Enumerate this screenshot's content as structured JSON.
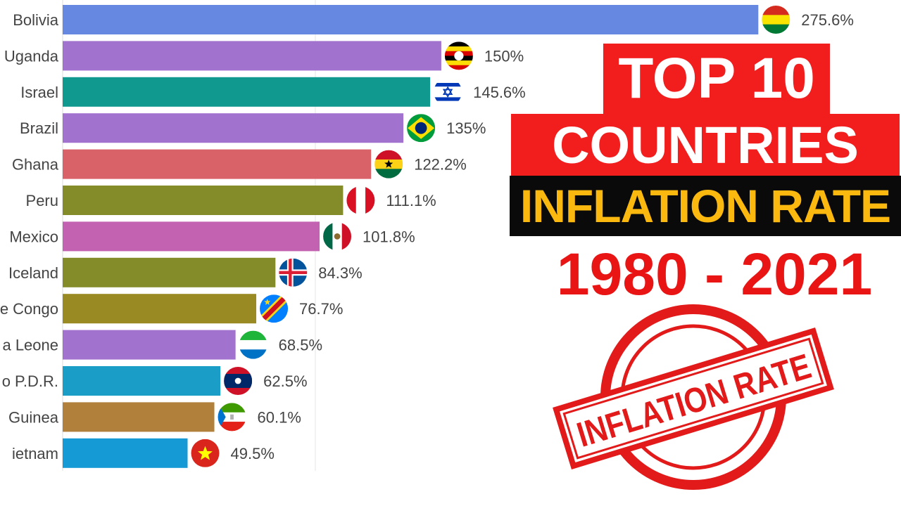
{
  "chart_data": {
    "type": "bar",
    "orientation": "horizontal",
    "categories": [
      "Bolivia",
      "Uganda",
      "Israel",
      "Brazil",
      "Ghana",
      "Peru",
      "Mexico",
      "Iceland",
      "e Congo",
      "a Leone",
      "o P.D.R.",
      "Guinea",
      "ietnam"
    ],
    "values": [
      275.6,
      150,
      145.6,
      135,
      122.2,
      111.1,
      101.8,
      84.3,
      76.7,
      68.5,
      62.5,
      60.1,
      49.5
    ],
    "value_labels": [
      "275.6%",
      "150%",
      "145.6%",
      "135%",
      "122.2%",
      "111.1%",
      "101.8%",
      "84.3%",
      "76.7%",
      "68.5%",
      "62.5%",
      "60.1%",
      "49.5%"
    ],
    "colors": [
      "#6688e0",
      "#a272cf",
      "#10998f",
      "#a272cf",
      "#d96268",
      "#838c29",
      "#c462b2",
      "#838c29",
      "#9a8a23",
      "#a272cf",
      "#1a9dc7",
      "#b1803a",
      "#159ad6"
    ],
    "flags": [
      "bolivia-flag",
      "uganda-flag",
      "israel-flag",
      "brazil-flag",
      "ghana-flag",
      "peru-flag",
      "mexico-flag",
      "iceland-flag",
      "dr-congo-flag",
      "sierra-leone-flag",
      "laos-flag",
      "equatorial-guinea-flag",
      "vietnam-flag"
    ],
    "xlim": [
      0,
      280
    ],
    "grid": true,
    "title": "",
    "xlabel": "",
    "ylabel": ""
  },
  "overlay": {
    "line1": "TOP 10",
    "line2": "COUNTRIES",
    "line3": "INFLATION RATE",
    "line4": "1980 - 2021",
    "stamp_text": "INFLATION RATE",
    "colors": {
      "red": "#f21d1d",
      "dark": "#0a0a0a",
      "gold": "#fbb80e",
      "stamp": "#e21a1a"
    }
  }
}
